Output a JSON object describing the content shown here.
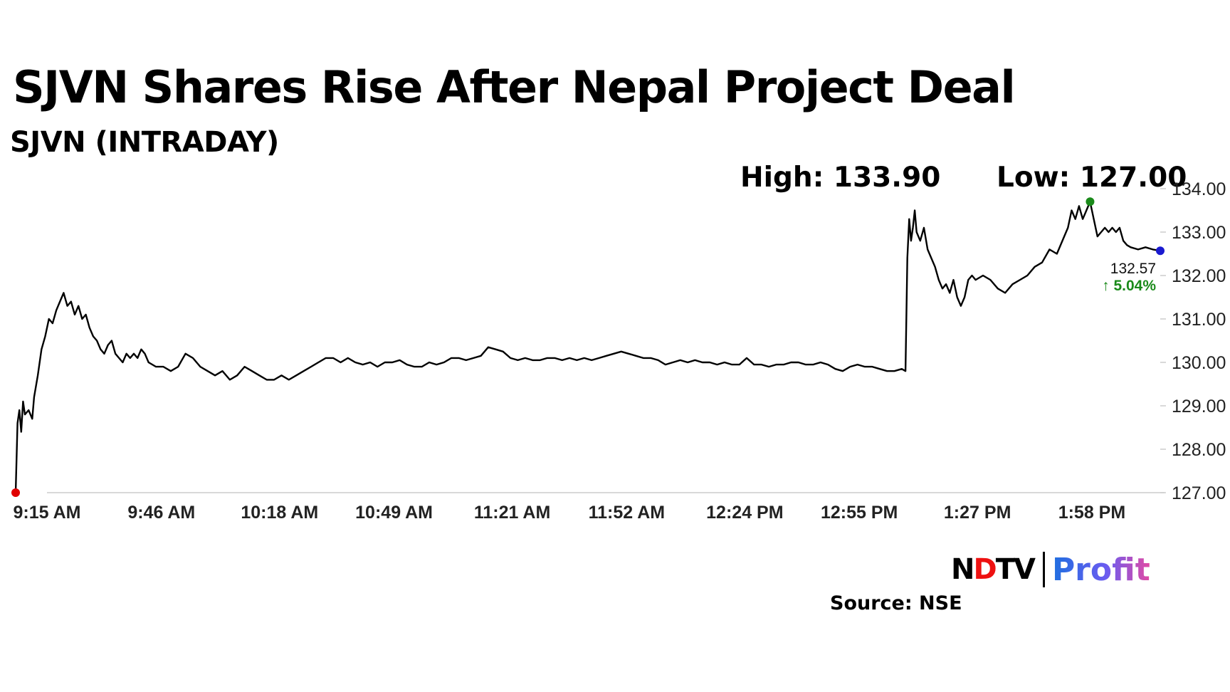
{
  "header": {
    "title": "SJVN Shares Rise After Nepal Project Deal",
    "subtitle": "SJVN (INTRADAY)",
    "high_label": "High: 133.90",
    "low_label": "Low: 127.00"
  },
  "footer": {
    "logo_ndtv_left": "N",
    "logo_ndtv_dot": "D",
    "logo_ndtv_right": "TV",
    "logo_profit": "Profit",
    "source": "Source: NSE"
  },
  "colors": {
    "line": "#000000",
    "start_marker": "#e00000",
    "high_marker": "#1a8a1a",
    "end_marker": "#1a1ad0",
    "change_up": "#1a8a1a",
    "axis": "#cccccc"
  },
  "chart_data": {
    "type": "line",
    "title": "SJVN (INTRADAY)",
    "xlabel": "",
    "ylabel": "",
    "ylim": [
      127.0,
      134.0
    ],
    "xlim_minutes": [
      0,
      310
    ],
    "y_ticks": [
      "127.00",
      "128.00",
      "129.00",
      "130.00",
      "131.00",
      "132.00",
      "133.00",
      "134.00"
    ],
    "x_ticks": [
      {
        "minute": 0,
        "label": "9:15 AM"
      },
      {
        "minute": 31,
        "label": "9:46 AM"
      },
      {
        "minute": 63,
        "label": "10:18 AM"
      },
      {
        "minute": 94,
        "label": "10:49 AM"
      },
      {
        "minute": 126,
        "label": "11:21 AM"
      },
      {
        "minute": 157,
        "label": "11:52 AM"
      },
      {
        "minute": 189,
        "label": "12:24 PM"
      },
      {
        "minute": 220,
        "label": "12:55 PM"
      },
      {
        "minute": 252,
        "label": "1:27 PM"
      },
      {
        "minute": 283,
        "label": "1:58 PM"
      }
    ],
    "series": [
      {
        "name": "SJVN",
        "points": [
          [
            0,
            127.0
          ],
          [
            0.5,
            128.6
          ],
          [
            1,
            128.9
          ],
          [
            1.5,
            128.4
          ],
          [
            2,
            129.1
          ],
          [
            2.5,
            128.8
          ],
          [
            3.5,
            128.9
          ],
          [
            4.5,
            128.7
          ],
          [
            5,
            129.2
          ],
          [
            6,
            129.7
          ],
          [
            7,
            130.3
          ],
          [
            8,
            130.6
          ],
          [
            9,
            131.0
          ],
          [
            10,
            130.9
          ],
          [
            11,
            131.2
          ],
          [
            12,
            131.4
          ],
          [
            13,
            131.6
          ],
          [
            14,
            131.3
          ],
          [
            15,
            131.4
          ],
          [
            16,
            131.1
          ],
          [
            17,
            131.3
          ],
          [
            18,
            131.0
          ],
          [
            19,
            131.1
          ],
          [
            20,
            130.8
          ],
          [
            21,
            130.6
          ],
          [
            22,
            130.5
          ],
          [
            23,
            130.3
          ],
          [
            24,
            130.2
          ],
          [
            25,
            130.4
          ],
          [
            26,
            130.5
          ],
          [
            27,
            130.2
          ],
          [
            28,
            130.1
          ],
          [
            29,
            130.0
          ],
          [
            30,
            130.2
          ],
          [
            31,
            130.1
          ],
          [
            32,
            130.2
          ],
          [
            33,
            130.1
          ],
          [
            34,
            130.3
          ],
          [
            35,
            130.2
          ],
          [
            36,
            130.0
          ],
          [
            38,
            129.9
          ],
          [
            40,
            129.9
          ],
          [
            42,
            129.8
          ],
          [
            44,
            129.9
          ],
          [
            46,
            130.2
          ],
          [
            48,
            130.1
          ],
          [
            50,
            129.9
          ],
          [
            52,
            129.8
          ],
          [
            54,
            129.7
          ],
          [
            56,
            129.8
          ],
          [
            58,
            129.6
          ],
          [
            60,
            129.7
          ],
          [
            62,
            129.9
          ],
          [
            64,
            129.8
          ],
          [
            66,
            129.7
          ],
          [
            68,
            129.6
          ],
          [
            70,
            129.6
          ],
          [
            72,
            129.7
          ],
          [
            74,
            129.6
          ],
          [
            76,
            129.7
          ],
          [
            78,
            129.8
          ],
          [
            80,
            129.9
          ],
          [
            82,
            130.0
          ],
          [
            84,
            130.1
          ],
          [
            86,
            130.1
          ],
          [
            88,
            130.0
          ],
          [
            90,
            130.1
          ],
          [
            92,
            130.0
          ],
          [
            94,
            129.95
          ],
          [
            96,
            130.0
          ],
          [
            98,
            129.9
          ],
          [
            100,
            130.0
          ],
          [
            102,
            130.0
          ],
          [
            104,
            130.05
          ],
          [
            106,
            129.95
          ],
          [
            108,
            129.9
          ],
          [
            110,
            129.9
          ],
          [
            112,
            130.0
          ],
          [
            114,
            129.95
          ],
          [
            116,
            130.0
          ],
          [
            118,
            130.1
          ],
          [
            120,
            130.1
          ],
          [
            122,
            130.05
          ],
          [
            124,
            130.1
          ],
          [
            126,
            130.15
          ],
          [
            128,
            130.35
          ],
          [
            130,
            130.3
          ],
          [
            132,
            130.25
          ],
          [
            134,
            130.1
          ],
          [
            136,
            130.05
          ],
          [
            138,
            130.1
          ],
          [
            140,
            130.05
          ],
          [
            142,
            130.05
          ],
          [
            144,
            130.1
          ],
          [
            146,
            130.1
          ],
          [
            148,
            130.05
          ],
          [
            150,
            130.1
          ],
          [
            152,
            130.05
          ],
          [
            154,
            130.1
          ],
          [
            156,
            130.05
          ],
          [
            158,
            130.1
          ],
          [
            160,
            130.15
          ],
          [
            162,
            130.2
          ],
          [
            164,
            130.25
          ],
          [
            166,
            130.2
          ],
          [
            168,
            130.15
          ],
          [
            170,
            130.1
          ],
          [
            172,
            130.1
          ],
          [
            174,
            130.05
          ],
          [
            176,
            129.95
          ],
          [
            178,
            130.0
          ],
          [
            180,
            130.05
          ],
          [
            182,
            130.0
          ],
          [
            184,
            130.05
          ],
          [
            186,
            130.0
          ],
          [
            188,
            130.0
          ],
          [
            190,
            129.95
          ],
          [
            192,
            130.0
          ],
          [
            194,
            129.95
          ],
          [
            196,
            129.95
          ],
          [
            198,
            130.1
          ],
          [
            200,
            129.95
          ],
          [
            202,
            129.95
          ],
          [
            204,
            129.9
          ],
          [
            206,
            129.95
          ],
          [
            208,
            129.95
          ],
          [
            210,
            130.0
          ],
          [
            212,
            130.0
          ],
          [
            214,
            129.95
          ],
          [
            216,
            129.95
          ],
          [
            218,
            130.0
          ],
          [
            220,
            129.95
          ],
          [
            222,
            129.85
          ],
          [
            224,
            129.8
          ],
          [
            226,
            129.9
          ],
          [
            228,
            129.95
          ],
          [
            230,
            129.9
          ],
          [
            232,
            129.9
          ],
          [
            234,
            129.85
          ],
          [
            236,
            129.8
          ],
          [
            238,
            129.8
          ],
          [
            240,
            129.85
          ],
          [
            241,
            129.8
          ],
          [
            241.5,
            132.4
          ],
          [
            242,
            133.3
          ],
          [
            242.5,
            132.8
          ],
          [
            243,
            133.1
          ],
          [
            243.5,
            133.5
          ],
          [
            244,
            133.0
          ],
          [
            245,
            132.8
          ],
          [
            246,
            133.1
          ],
          [
            247,
            132.6
          ],
          [
            248,
            132.4
          ],
          [
            249,
            132.2
          ],
          [
            250,
            131.9
          ],
          [
            251,
            131.7
          ],
          [
            252,
            131.8
          ],
          [
            253,
            131.6
          ],
          [
            254,
            131.9
          ],
          [
            255,
            131.5
          ],
          [
            256,
            131.3
          ],
          [
            257,
            131.5
          ],
          [
            258,
            131.9
          ],
          [
            259,
            132.0
          ],
          [
            260,
            131.9
          ],
          [
            262,
            132.0
          ],
          [
            264,
            131.9
          ],
          [
            266,
            131.7
          ],
          [
            268,
            131.6
          ],
          [
            270,
            131.8
          ],
          [
            272,
            131.9
          ],
          [
            274,
            132.0
          ],
          [
            276,
            132.2
          ],
          [
            278,
            132.3
          ],
          [
            280,
            132.6
          ],
          [
            282,
            132.5
          ],
          [
            284,
            132.9
          ],
          [
            285,
            133.1
          ],
          [
            286,
            133.5
          ],
          [
            287,
            133.3
          ],
          [
            288,
            133.6
          ],
          [
            289,
            133.3
          ],
          [
            290,
            133.5
          ],
          [
            291,
            133.7
          ],
          [
            292,
            133.3
          ],
          [
            293,
            132.9
          ],
          [
            294,
            133.0
          ],
          [
            295,
            133.1
          ],
          [
            296,
            133.0
          ],
          [
            297,
            133.1
          ],
          [
            298,
            133.0
          ],
          [
            299,
            133.1
          ],
          [
            300,
            132.8
          ],
          [
            301,
            132.7
          ],
          [
            302,
            132.65
          ],
          [
            304,
            132.6
          ],
          [
            306,
            132.65
          ],
          [
            308,
            132.6
          ],
          [
            310,
            132.57
          ]
        ]
      }
    ],
    "markers": {
      "start": {
        "minute": 0,
        "value": 127.0
      },
      "high": {
        "minute": 291,
        "value": 133.7
      },
      "last": {
        "minute": 310,
        "value": 132.57
      }
    },
    "last_value_label": "132.57",
    "change_label": "↑ 5.04%"
  }
}
